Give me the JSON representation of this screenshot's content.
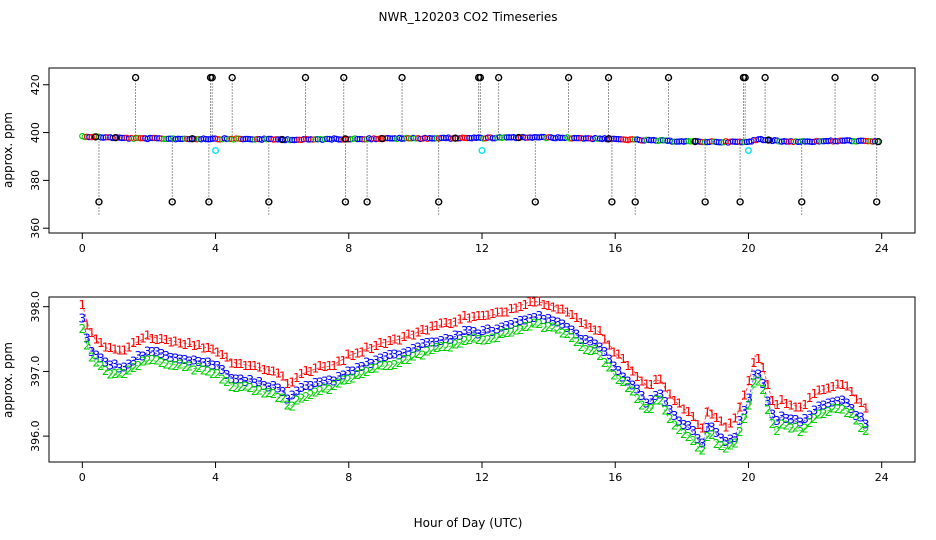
{
  "title": "NWR_120203  CO2 Timeseries",
  "xlabel": "Hour of Day (UTC)",
  "colors": {
    "red": "#ff0000",
    "blue": "#0000ff",
    "green": "#00cc00",
    "cyan": "#00e5ee",
    "black": "#000000",
    "orange": "#ff9900"
  },
  "chart_data": [
    {
      "type": "scatter",
      "ylabel": "approx. ppm",
      "xlim": [
        -1,
        25
      ],
      "ylim": [
        358,
        427
      ],
      "xticks": [
        "0",
        "4",
        "8",
        "12",
        "16",
        "20",
        "24"
      ],
      "yticks": [
        "360",
        "380",
        "400",
        "420"
      ],
      "series": [
        {
          "name": "blue measurements",
          "segments": [
            [
              0.0,
              398.4
            ],
            [
              1.5,
              397.6
            ],
            [
              3.0,
              397.4
            ],
            [
              4.0,
              397.4
            ],
            [
              5.5,
              397.2
            ],
            [
              6.5,
              397.0
            ],
            [
              7.5,
              397.3
            ],
            [
              8.5,
              397.4
            ],
            [
              10.0,
              397.6
            ],
            [
              11.5,
              397.7
            ],
            [
              12.5,
              397.8
            ],
            [
              13.5,
              398.0
            ],
            [
              14.5,
              397.8
            ],
            [
              15.5,
              397.5
            ],
            [
              16.5,
              397.0
            ],
            [
              17.5,
              396.5
            ],
            [
              18.5,
              396.2
            ],
            [
              19.5,
              396.1
            ],
            [
              20.0,
              396.0
            ],
            [
              20.3,
              397.3
            ],
            [
              21.0,
              396.3
            ],
            [
              22.0,
              396.3
            ],
            [
              23.0,
              396.6
            ],
            [
              23.9,
              396.2
            ]
          ]
        },
        {
          "name": "black circle spikes high",
          "x": [
            1.6,
            3.85,
            3.9,
            4.5,
            6.7,
            7.85,
            9.6,
            11.9,
            11.95,
            12.5,
            14.6,
            15.8,
            17.6,
            19.85,
            19.9,
            20.5,
            22.6,
            23.8
          ],
          "y": [
            423,
            423,
            423,
            423,
            423,
            423,
            423,
            423,
            423,
            423,
            423,
            423,
            423,
            423,
            423,
            423,
            423,
            423
          ]
        },
        {
          "name": "black circle spikes low",
          "x": [
            0.5,
            2.7,
            3.8,
            5.6,
            7.9,
            8.55,
            10.7,
            13.6,
            15.9,
            16.6,
            18.7,
            19.75,
            21.6,
            23.85
          ],
          "y": [
            371,
            371,
            371,
            371,
            371,
            371,
            371,
            371,
            371,
            371,
            371,
            371,
            371,
            371
          ]
        },
        {
          "name": "cyan outliers",
          "x": [
            4.0,
            12.0,
            20.0
          ],
          "y": [
            392.5,
            392.5,
            392.5
          ]
        }
      ]
    },
    {
      "type": "line",
      "ylabel": "approx. ppm",
      "xlim": [
        -1,
        25
      ],
      "ylim": [
        395.6,
        398.15
      ],
      "xticks": [
        "0",
        "4",
        "8",
        "12",
        "16",
        "20",
        "24"
      ],
      "yticks": [
        "396.0",
        "397.0",
        "398.0"
      ],
      "series": [
        {
          "name": "1",
          "label": "1",
          "offset": 0.3
        },
        {
          "name": "3",
          "label": "3",
          "offset": 0.0
        },
        {
          "name": "2",
          "label": "2",
          "offset": -0.12
        }
      ],
      "base_x": [
        0.0,
        0.1,
        0.3,
        0.5,
        0.8,
        1.2,
        1.6,
        2.0,
        2.5,
        3.0,
        3.5,
        4.0,
        4.5,
        5.0,
        5.5,
        6.0,
        6.2,
        6.5,
        7.0,
        7.5,
        8.0,
        8.5,
        9.0,
        9.5,
        10.0,
        10.5,
        11.0,
        11.5,
        12.0,
        12.5,
        13.0,
        13.5,
        14.0,
        14.5,
        15.0,
        15.5,
        16.0,
        16.5,
        17.0,
        17.3,
        17.6,
        18.0,
        18.3,
        18.6,
        18.8,
        19.0,
        19.3,
        19.6,
        19.8,
        20.0,
        20.2,
        20.4,
        20.6,
        20.8,
        21.0,
        21.3,
        21.6,
        22.0,
        22.3,
        22.6,
        23.0,
        23.3,
        23.6
      ],
      "base_y": [
        397.8,
        397.55,
        397.3,
        397.2,
        397.1,
        397.05,
        397.2,
        397.3,
        397.25,
        397.2,
        397.15,
        397.1,
        396.9,
        396.85,
        396.8,
        396.7,
        396.55,
        396.7,
        396.8,
        396.85,
        397.0,
        397.1,
        397.2,
        397.25,
        397.35,
        397.45,
        397.5,
        397.6,
        397.6,
        397.65,
        397.75,
        397.85,
        397.8,
        397.7,
        397.5,
        397.4,
        397.05,
        396.8,
        396.5,
        396.7,
        396.4,
        396.2,
        396.1,
        395.85,
        396.2,
        396.05,
        395.9,
        396.0,
        396.3,
        396.55,
        397.0,
        396.9,
        396.5,
        396.2,
        396.3,
        396.25,
        396.2,
        396.4,
        396.5,
        396.55,
        396.5,
        396.3,
        396.15
      ]
    }
  ]
}
